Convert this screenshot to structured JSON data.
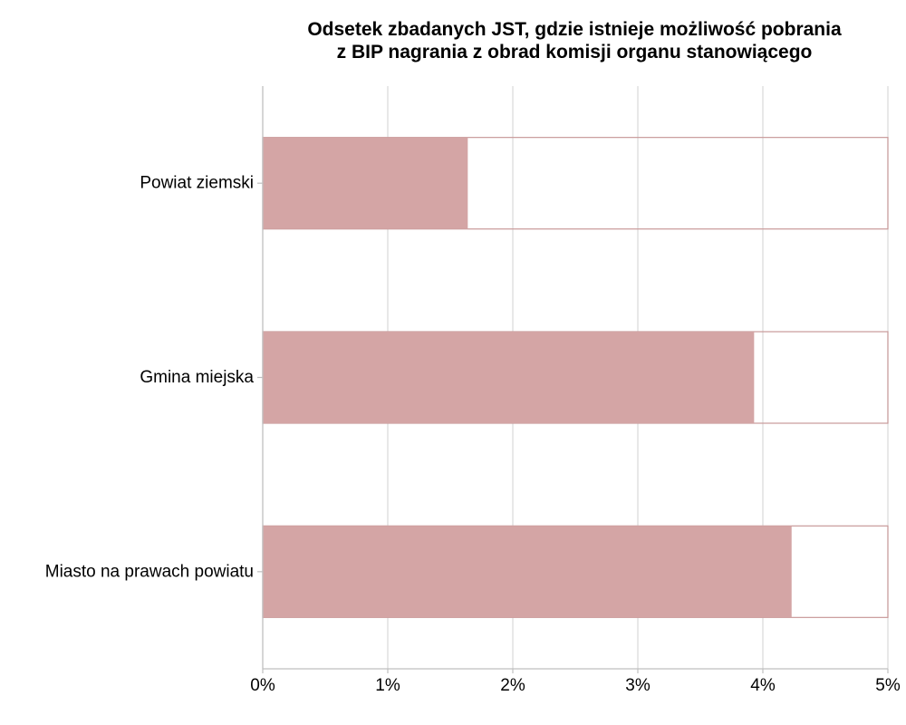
{
  "chart_data": {
    "type": "bar",
    "orientation": "horizontal",
    "title": [
      "Odsetek zbadanych JST, gdzie istnieje możliwość pobrania",
      "z BIP nagrania z obrad komisji organu stanowiącego"
    ],
    "xlabel": "",
    "ylabel": "",
    "categories": [
      "Powiat ziemski",
      "Gmina miejska",
      "Miasto na prawach powiatu"
    ],
    "values": [
      1.64,
      3.93,
      4.23
    ],
    "value_unit": "%",
    "xlim": [
      0,
      5
    ],
    "x_ticks": [
      0,
      1,
      2,
      3,
      4,
      5
    ],
    "x_tick_labels": [
      "0%",
      "1%",
      "2%",
      "3%",
      "4%",
      "5%"
    ],
    "grid": true,
    "legend": "none",
    "colors": {
      "bar_fill": "#d4a5a5",
      "bar_outline": "#c99a9a",
      "grid": "#d9d9d9",
      "axis": "#bfbfbf",
      "text": "#000000"
    }
  }
}
